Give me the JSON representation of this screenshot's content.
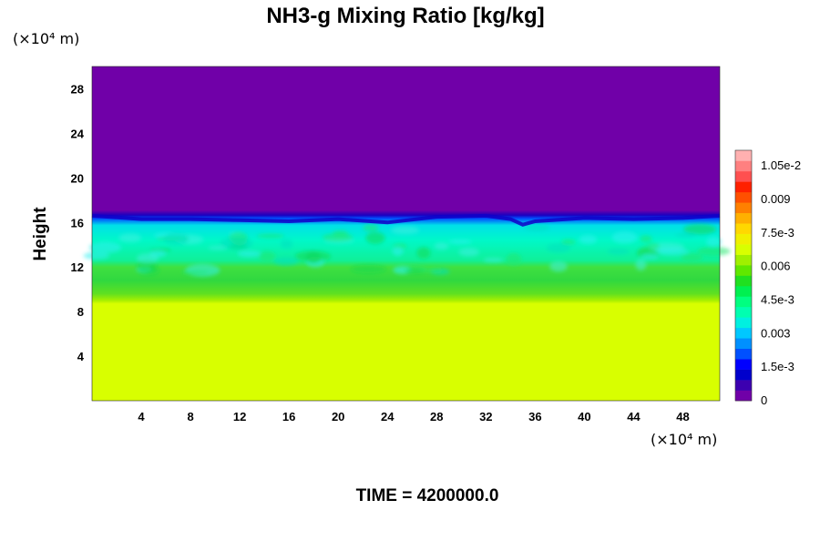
{
  "chart_data": {
    "type": "heatmap",
    "title": "NH3-g Mixing Ratio [kg/kg]",
    "xlabel": "",
    "ylabel": "Height",
    "x_unit": "(×10⁴ m)",
    "y_unit": "(×10⁴ m)",
    "time_label": "TIME = 4200000.0",
    "xlim": [
      0,
      51
    ],
    "ylim": [
      0,
      30
    ],
    "x_ticks": [
      4,
      8,
      12,
      16,
      20,
      24,
      28,
      32,
      36,
      40,
      44,
      48
    ],
    "x_tick_labels": [
      "4",
      "8",
      "12",
      "16",
      "20",
      "24",
      "28",
      "32",
      "36",
      "40",
      "44",
      "48"
    ],
    "y_ticks": [
      4,
      8,
      12,
      16,
      20,
      24,
      28
    ],
    "y_tick_labels": [
      "4",
      "8",
      "12",
      "16",
      "20",
      "24",
      "28"
    ],
    "colorbar": {
      "range": [
        0,
        0.0112
      ],
      "ticks": [
        0,
        0.0015,
        0.003,
        0.0045,
        0.006,
        0.0075,
        0.009,
        0.0105
      ],
      "tick_labels": [
        "0",
        "1.5e-3",
        "0.003",
        "4.5e-3",
        "0.006",
        "7.5e-3",
        "0.009",
        "1.05e-2"
      ],
      "colors": [
        "#7000a8",
        "#3c00b0",
        "#0000cc",
        "#0000ff",
        "#0050ff",
        "#0090ff",
        "#00c8ff",
        "#00f0e0",
        "#00ffb0",
        "#00ff80",
        "#00f050",
        "#20e020",
        "#60e800",
        "#a0f000",
        "#d8ff00",
        "#f0f000",
        "#ffd800",
        "#ffb000",
        "#ff8000",
        "#ff5000",
        "#ff2000",
        "#ff5050",
        "#ff8080",
        "#ffb0b0"
      ]
    },
    "layers": [
      {
        "height_from": 0,
        "height_to": 8.9,
        "value": 0.0078
      },
      {
        "height_from": 8.9,
        "height_to": 10,
        "value": 0.0072
      },
      {
        "height_from": 10,
        "height_to": 12.5,
        "value": 0.0064
      },
      {
        "height_from": 12.5,
        "height_to": 16,
        "value": 0.0048
      },
      {
        "height_from": 16,
        "height_to": 30,
        "value": 0
      }
    ],
    "cloud_top_height": [
      {
        "x": 0,
        "y": 16.6
      },
      {
        "x": 4,
        "y": 16.3
      },
      {
        "x": 8,
        "y": 16.3
      },
      {
        "x": 12,
        "y": 16.2
      },
      {
        "x": 16,
        "y": 16.1
      },
      {
        "x": 20,
        "y": 16.3
      },
      {
        "x": 24,
        "y": 16.0
      },
      {
        "x": 28,
        "y": 16.5
      },
      {
        "x": 32,
        "y": 16.6
      },
      {
        "x": 34,
        "y": 16.3
      },
      {
        "x": 35,
        "y": 15.8
      },
      {
        "x": 36,
        "y": 16.1
      },
      {
        "x": 40,
        "y": 16.4
      },
      {
        "x": 44,
        "y": 16.3
      },
      {
        "x": 48,
        "y": 16.4
      },
      {
        "x": 51,
        "y": 16.6
      }
    ]
  }
}
